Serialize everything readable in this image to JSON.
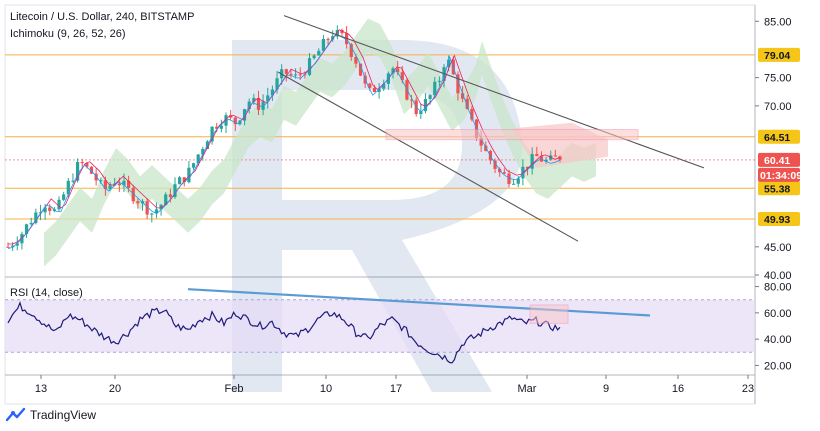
{
  "header": {
    "title": "Litecoin / U.S. Dollar, 240, BITSTAMP",
    "indicator": "Ichimoku (9, 26, 52, 26)"
  },
  "brand": {
    "name": "TradingView"
  },
  "colors": {
    "up": "#26a69a",
    "down": "#ef5350",
    "cloud_green": "#c8e6c9",
    "cloud_red": "#f8c6c6",
    "rsi_line": "#1e1b7a",
    "rsi_band": "#e6dcf5",
    "trend_blue": "#5b9bd5",
    "channel": "#555555",
    "level_orange": "#f5b041",
    "badge_yellow": "#f5c518",
    "badge_red": "#ef5350"
  },
  "chart_data": [
    {
      "type": "candlestick",
      "title": "Litecoin / U.S. Dollar, 240, BITSTAMP",
      "y_ticks": [
        "85.00",
        "79.04",
        "75.00",
        "70.00",
        "64.51",
        "60.41",
        "55.38",
        "49.93",
        "45.00",
        "40.00"
      ],
      "ylim": [
        40,
        87
      ],
      "x_ticks": [
        "13",
        "20",
        "Feb",
        "10",
        "17",
        "Mar",
        "9",
        "16",
        "23"
      ],
      "price_levels": [
        {
          "value": 79.04,
          "label": "79.04"
        },
        {
          "value": 64.51,
          "label": "64.51"
        },
        {
          "value": 55.38,
          "label": "55.38"
        },
        {
          "value": 49.93,
          "label": "49.93"
        }
      ],
      "last_price": {
        "value": 60.41,
        "label": "60.41",
        "countdown": "01:34:09"
      },
      "path_points": [
        [
          0,
          45
        ],
        [
          10,
          47
        ],
        [
          20,
          50
        ],
        [
          30,
          53
        ],
        [
          40,
          51
        ],
        [
          50,
          56
        ],
        [
          60,
          60
        ],
        [
          70,
          58
        ],
        [
          80,
          55
        ],
        [
          90,
          57
        ],
        [
          100,
          55
        ],
        [
          110,
          53
        ],
        [
          120,
          51
        ],
        [
          130,
          53
        ],
        [
          140,
          56
        ],
        [
          150,
          58
        ],
        [
          160,
          62
        ],
        [
          170,
          66
        ],
        [
          180,
          68
        ],
        [
          190,
          67
        ],
        [
          200,
          71
        ],
        [
          210,
          70
        ],
        [
          220,
          73
        ],
        [
          230,
          76
        ],
        [
          240,
          75
        ],
        [
          250,
          77
        ],
        [
          260,
          80
        ],
        [
          270,
          83
        ],
        [
          280,
          82
        ],
        [
          290,
          78
        ],
        [
          300,
          72
        ],
        [
          310,
          74
        ],
        [
          320,
          77
        ],
        [
          330,
          73
        ],
        [
          340,
          69
        ],
        [
          350,
          71
        ],
        [
          360,
          75
        ],
        [
          365,
          79
        ],
        [
          370,
          76
        ],
        [
          380,
          70
        ],
        [
          390,
          65
        ],
        [
          400,
          61
        ],
        [
          410,
          58
        ],
        [
          420,
          57
        ],
        [
          430,
          59
        ],
        [
          440,
          61
        ],
        [
          450,
          60
        ],
        [
          460,
          61
        ]
      ],
      "candle_count": 120
    },
    {
      "type": "line",
      "title": "RSI (14, close)",
      "y_ticks": [
        "80.00",
        "60.00",
        "40.00",
        "20.00"
      ],
      "ylim": [
        15,
        85
      ],
      "band": [
        30,
        70
      ],
      "path_points": [
        [
          0,
          55
        ],
        [
          10,
          65
        ],
        [
          20,
          60
        ],
        [
          30,
          52
        ],
        [
          40,
          45
        ],
        [
          50,
          58
        ],
        [
          60,
          55
        ],
        [
          70,
          48
        ],
        [
          80,
          42
        ],
        [
          90,
          38
        ],
        [
          100,
          45
        ],
        [
          110,
          55
        ],
        [
          120,
          60
        ],
        [
          130,
          62
        ],
        [
          140,
          50
        ],
        [
          150,
          47
        ],
        [
          160,
          55
        ],
        [
          170,
          58
        ],
        [
          180,
          52
        ],
        [
          190,
          60
        ],
        [
          200,
          55
        ],
        [
          210,
          50
        ],
        [
          220,
          53
        ],
        [
          230,
          45
        ],
        [
          240,
          42
        ],
        [
          250,
          48
        ],
        [
          260,
          56
        ],
        [
          270,
          60
        ],
        [
          280,
          55
        ],
        [
          290,
          45
        ],
        [
          300,
          40
        ],
        [
          310,
          50
        ],
        [
          320,
          55
        ],
        [
          330,
          48
        ],
        [
          340,
          38
        ],
        [
          350,
          32
        ],
        [
          360,
          28
        ],
        [
          370,
          24
        ],
        [
          380,
          38
        ],
        [
          390,
          42
        ],
        [
          400,
          48
        ],
        [
          410,
          52
        ],
        [
          420,
          56
        ],
        [
          430,
          52
        ],
        [
          440,
          54
        ],
        [
          450,
          50
        ],
        [
          460,
          48
        ]
      ],
      "trendline": {
        "from": 78,
        "to": 58
      }
    }
  ]
}
